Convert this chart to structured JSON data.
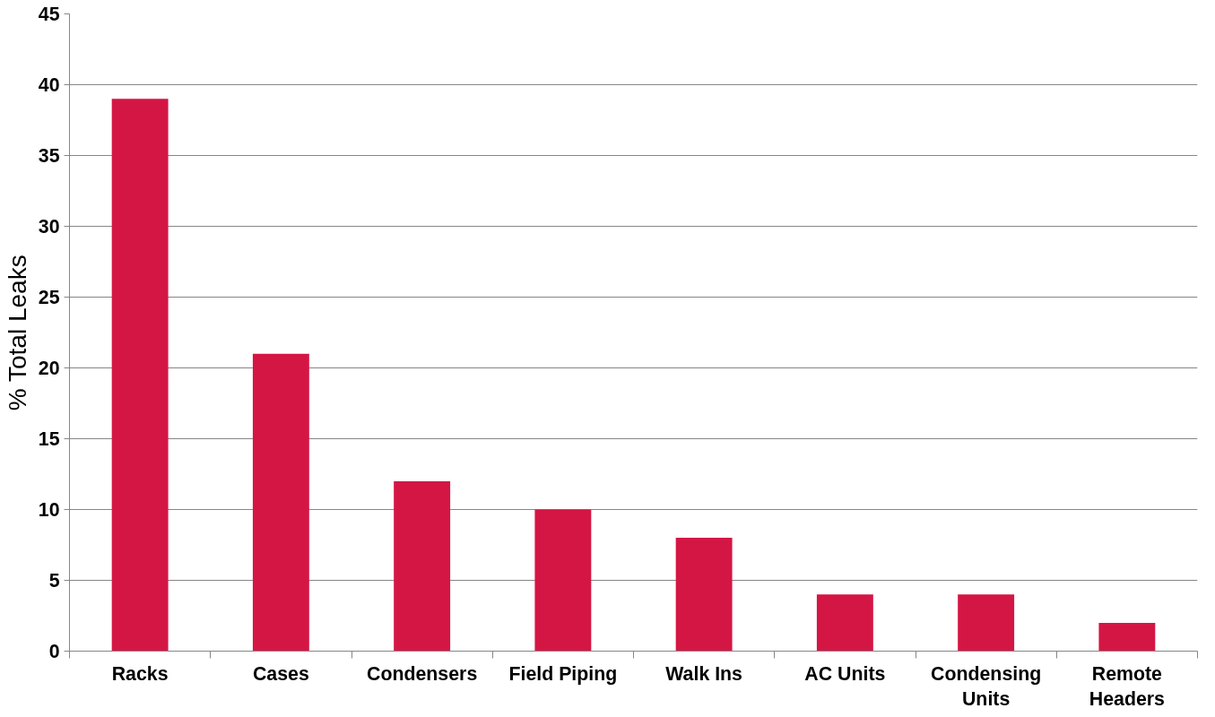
{
  "chart_data": {
    "type": "bar",
    "ylabel": "% Total Leaks",
    "categories": [
      "Racks",
      "Cases",
      "Condensers",
      "Field Piping",
      "Walk Ins",
      "AC Units",
      "Condensing Units",
      "Remote Headers"
    ],
    "values": [
      39,
      21,
      12,
      10,
      8,
      4,
      4,
      2
    ],
    "color": "#d41645",
    "ylim": [
      0,
      45
    ],
    "yticks": [
      0,
      5,
      10,
      15,
      20,
      25,
      30,
      35,
      40,
      45
    ],
    "grid": "y"
  }
}
